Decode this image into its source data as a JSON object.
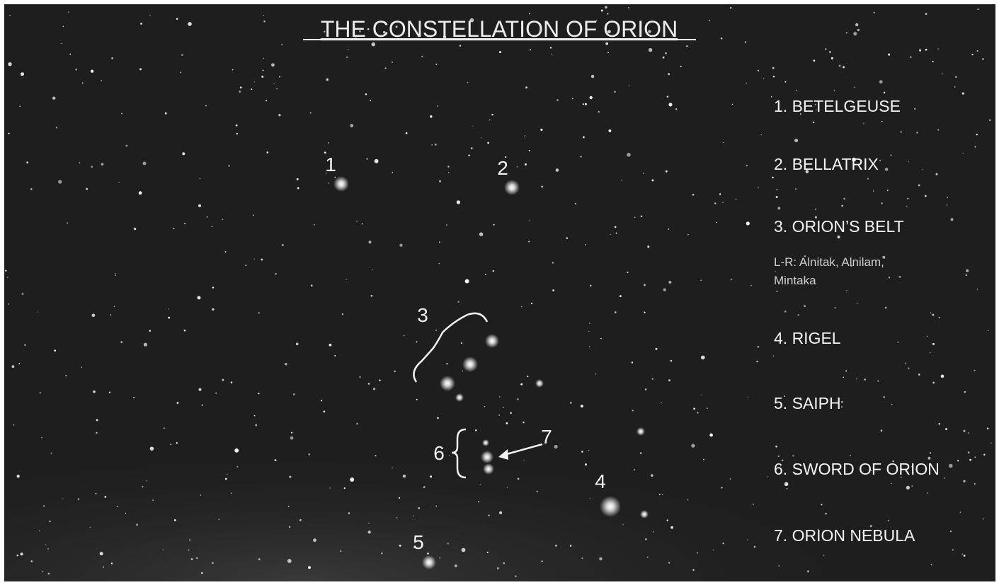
{
  "title": "THE CONSTELLATION OF ORION",
  "labels": [
    "1",
    "2",
    "3",
    "4",
    "5",
    "6",
    "7"
  ],
  "legend": {
    "items": [
      "1. BETELGEUSE",
      "2. BELLATRIX",
      "3. ORION’S BELT",
      "4. RIGEL",
      "5. SAIPH",
      "6. SWORD OF ORION",
      "7. ORION NEBULA"
    ],
    "note": "L-R: Alnitak, Alnilam, Mintaka"
  }
}
